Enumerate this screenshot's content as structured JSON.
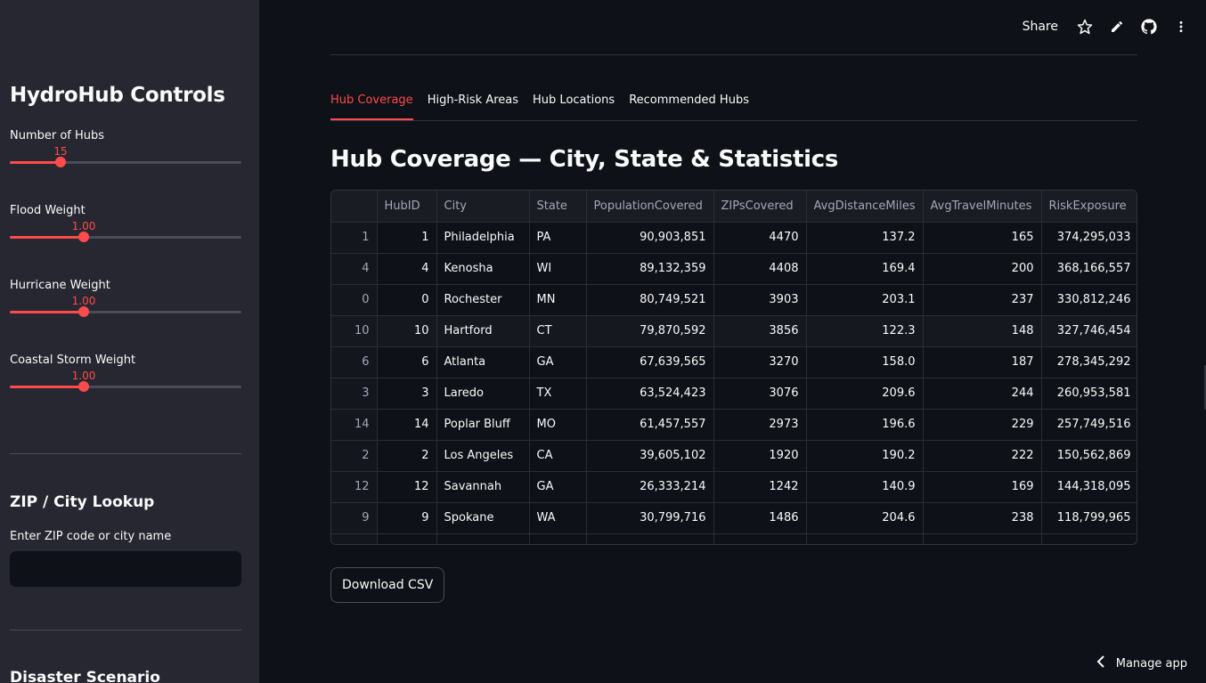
{
  "sidebar": {
    "title": "HydroHub Controls",
    "sliders": [
      {
        "label": "Number of Hubs",
        "value": "15",
        "fraction": 0.22
      },
      {
        "label": "Flood Weight",
        "value": "1.00",
        "fraction": 0.32
      },
      {
        "label": "Hurricane Weight",
        "value": "1.00",
        "fraction": 0.32
      },
      {
        "label": "Coastal Storm Weight",
        "value": "1.00",
        "fraction": 0.32
      }
    ],
    "lookup_title": "ZIP / City Lookup",
    "lookup_label": "Enter ZIP code or city name",
    "lookup_value": "",
    "scenario_title": "Disaster Scenario"
  },
  "toolbar": {
    "share_label": "Share",
    "icons": [
      "star-icon",
      "pencil-icon",
      "github-icon",
      "more-vertical-icon"
    ]
  },
  "tabs": [
    {
      "label": "Hub Coverage",
      "active": true
    },
    {
      "label": "High-Risk Areas",
      "active": false
    },
    {
      "label": "Hub Locations",
      "active": false
    },
    {
      "label": "Recommended Hubs",
      "active": false
    }
  ],
  "main": {
    "title": "Hub Coverage — City, State & Statistics",
    "download_label": "Download CSV",
    "manage_label": "Manage app"
  },
  "table": {
    "columns": [
      "",
      "HubID",
      "City",
      "State",
      "PopulationCovered",
      "ZIPsCovered",
      "AvgDistanceMiles",
      "AvgTravelMinutes",
      "RiskExposure"
    ],
    "rows": [
      [
        "1",
        "1",
        "Philadelphia",
        "PA",
        "90,903,851",
        "4470",
        "137.2",
        "165",
        "374,295,033"
      ],
      [
        "4",
        "4",
        "Kenosha",
        "WI",
        "89,132,359",
        "4408",
        "169.4",
        "200",
        "368,166,557"
      ],
      [
        "0",
        "0",
        "Rochester",
        "MN",
        "80,749,521",
        "3903",
        "203.1",
        "237",
        "330,812,246"
      ],
      [
        "10",
        "10",
        "Hartford",
        "CT",
        "79,870,592",
        "3856",
        "122.3",
        "148",
        "327,746,454"
      ],
      [
        "6",
        "6",
        "Atlanta",
        "GA",
        "67,639,565",
        "3270",
        "158.0",
        "187",
        "278,345,292"
      ],
      [
        "3",
        "3",
        "Laredo",
        "TX",
        "63,524,423",
        "3076",
        "209.6",
        "244",
        "260,953,581"
      ],
      [
        "14",
        "14",
        "Poplar Bluff",
        "MO",
        "61,457,557",
        "2973",
        "196.6",
        "229",
        "257,749,516"
      ],
      [
        "2",
        "2",
        "Los Angeles",
        "CA",
        "39,605,102",
        "1920",
        "190.2",
        "222",
        "150,562,869"
      ],
      [
        "12",
        "12",
        "Savannah",
        "GA",
        "26,333,214",
        "1242",
        "140.9",
        "169",
        "144,318,095"
      ],
      [
        "9",
        "9",
        "Spokane",
        "WA",
        "30,799,716",
        "1486",
        "204.6",
        "238",
        "118,799,965"
      ],
      [
        "",
        "",
        "",
        "",
        "",
        "",
        "",
        "",
        ""
      ]
    ]
  },
  "colors": {
    "accent": "#ff4b4b",
    "sidebar_bg": "#262730",
    "main_bg": "#0e1117"
  }
}
